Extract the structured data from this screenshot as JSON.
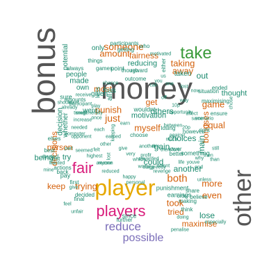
{
  "word_cloud": {
    "background": "#ffffff",
    "palette": {
      "gray": "#555555",
      "green": "#3a9a3a",
      "orange": "#d4610c",
      "teal": "#1a8a6e",
      "yellow": "#e6a800",
      "pink": "#d81b7a",
      "purple": "#7a6db8",
      "olive": "#6a9a1a"
    },
    "words": [
      {
        "text": "money",
        "color": "gray",
        "weight": 1.0
      },
      {
        "text": "bonus",
        "color": "gray",
        "weight": 0.95
      },
      {
        "text": "other",
        "color": "gray",
        "weight": 0.9
      },
      {
        "text": "player",
        "color": "yellow",
        "weight": 0.8
      },
      {
        "text": "take",
        "color": "green",
        "weight": 0.6
      },
      {
        "text": "players",
        "color": "pink",
        "weight": 0.55
      },
      {
        "text": "fair",
        "color": "pink",
        "weight": 0.55
      },
      {
        "text": "reduce",
        "color": "purple",
        "weight": 0.45
      },
      {
        "text": "possible",
        "color": "purple",
        "weight": 0.4
      },
      {
        "text": "someone",
        "color": "orange",
        "weight": 0.3
      },
      {
        "text": "amount",
        "color": "orange",
        "weight": 0.3
      },
      {
        "text": "both",
        "color": "orange",
        "weight": 0.3
      },
      {
        "text": "game",
        "color": "orange",
        "weight": 0.3
      },
      {
        "text": "more",
        "color": "orange",
        "weight": 0.3
      },
      {
        "text": "even",
        "color": "orange",
        "weight": 0.28
      },
      {
        "text": "took",
        "color": "orange",
        "weight": 0.28
      },
      {
        "text": "tried",
        "color": "orange",
        "weight": 0.25
      },
      {
        "text": "maximise",
        "color": "orange",
        "weight": 0.25
      },
      {
        "text": "taking",
        "color": "orange",
        "weight": 0.28
      },
      {
        "text": "away",
        "color": "orange",
        "weight": 0.28
      },
      {
        "text": "most",
        "color": "orange",
        "weight": 0.25
      },
      {
        "text": "just",
        "color": "orange",
        "weight": 0.28
      },
      {
        "text": "myself",
        "color": "orange",
        "weight": 0.28
      },
      {
        "text": "trying",
        "color": "orange",
        "weight": 0.28
      },
      {
        "text": "bonuses",
        "color": "orange",
        "weight": 0.25
      },
      {
        "text": "equal",
        "color": "orange",
        "weight": 0.28
      },
      {
        "text": "punish",
        "color": "orange",
        "weight": 0.25
      },
      {
        "text": "decisions",
        "color": "orange",
        "weight": 0.22
      },
      {
        "text": "fairness",
        "color": "orange",
        "weight": 0.22
      },
      {
        "text": "person",
        "color": "orange",
        "weight": 0.22
      },
      {
        "text": "keep",
        "color": "orange",
        "weight": 0.22
      },
      {
        "text": "get",
        "color": "orange",
        "weight": 0.22
      },
      {
        "text": "out",
        "color": "teal",
        "weight": 0.25
      },
      {
        "text": "reducing",
        "color": "teal",
        "weight": 0.22
      },
      {
        "text": "could",
        "color": "teal",
        "weight": 0.22
      },
      {
        "text": "lose",
        "color": "teal",
        "weight": 0.22
      },
      {
        "text": "made",
        "color": "teal",
        "weight": 0.2
      },
      {
        "text": "has",
        "color": "teal",
        "weight": 0.2
      },
      {
        "text": "thought",
        "color": "teal",
        "weight": 0.2
      },
      {
        "text": "another",
        "color": "teal",
        "weight": 0.2
      },
      {
        "text": "gain",
        "color": "teal",
        "weight": 0.2
      },
      {
        "text": "choices",
        "color": "teal",
        "weight": 0.2
      },
      {
        "text": "others",
        "color": "teal",
        "weight": 0.2
      },
      {
        "text": "main",
        "color": "teal",
        "weight": 0.2
      },
      {
        "text": "being",
        "color": "teal",
        "weight": 0.2
      },
      {
        "text": "try",
        "color": "teal",
        "weight": 0.2
      },
      {
        "text": "decision",
        "color": "teal",
        "weight": 0.2
      },
      {
        "text": "only",
        "color": "teal",
        "weight": 0.18
      },
      {
        "text": "motivation",
        "color": "teal",
        "weight": 0.18
      },
      {
        "text": "people",
        "color": "teal",
        "weight": 0.18
      },
      {
        "text": "wouldnt",
        "color": "teal",
        "weight": 0.16
      },
      {
        "text": "whether",
        "color": "teal",
        "weight": 0.16
      },
      {
        "text": "punishment",
        "color": "teal",
        "weight": 0.12
      },
      {
        "text": "taken",
        "color": "teal",
        "weight": 0.16
      },
      {
        "text": "all",
        "color": "teal",
        "weight": 0.18
      },
      {
        "text": "who",
        "color": "teal",
        "weight": 0.18
      },
      {
        "text": "own",
        "color": "teal",
        "weight": 0.16
      },
      {
        "text": "sure",
        "color": "teal",
        "weight": 0.14
      },
      {
        "text": "point",
        "color": "teal",
        "weight": 0.16
      },
      {
        "text": "were",
        "color": "teal",
        "weight": 0.16
      },
      {
        "text": "either",
        "color": "teal",
        "weight": 0.14
      },
      {
        "text": "given",
        "color": "teal",
        "weight": 0.1
      },
      {
        "text": "less",
        "color": "teal",
        "weight": 0.16
      },
      {
        "text": "since",
        "color": "teal",
        "weight": 0.14
      },
      {
        "text": "pay",
        "color": "teal",
        "weight": 0.14
      },
      {
        "text": "however",
        "color": "teal",
        "weight": 0.1
      },
      {
        "text": "share",
        "color": "teal",
        "weight": 0.12
      },
      {
        "text": "believe",
        "color": "teal",
        "weight": 0.1
      },
      {
        "text": "earnings",
        "color": "teal",
        "weight": 0.1
      },
      {
        "text": "making",
        "color": "teal",
        "weight": 0.12
      },
      {
        "text": "something",
        "color": "teal",
        "weight": 0.1
      },
      {
        "text": "think",
        "color": "teal",
        "weight": 0.12
      },
      {
        "text": "participants",
        "color": "teal",
        "weight": 0.1
      },
      {
        "text": "getting",
        "color": "teal",
        "weight": 0.1
      },
      {
        "text": "motivated",
        "color": "teal",
        "weight": 0.1
      },
      {
        "text": "potential",
        "color": "teal",
        "weight": 0.1
      },
      {
        "text": "things",
        "color": "teal",
        "weight": 0.12
      },
      {
        "text": "always",
        "color": "teal",
        "weight": 0.1
      },
      {
        "text": "games",
        "color": "teal",
        "weight": 0.1
      },
      {
        "text": "though",
        "color": "teal",
        "weight": 0.1
      },
      {
        "text": "reward",
        "color": "teal",
        "weight": 0.1
      },
      {
        "text": "outcome",
        "color": "teal",
        "weight": 0.1
      },
      {
        "text": "amounts",
        "color": "teal",
        "weight": 0.1
      },
      {
        "text": "choose",
        "color": "teal",
        "weight": 0.1
      },
      {
        "text": "situation",
        "color": "teal",
        "weight": 0.1
      },
      {
        "text": "ended",
        "color": "teal",
        "weight": 0.1
      },
      {
        "text": "maximising",
        "color": "teal",
        "weight": 0.1
      },
      {
        "text": "ensure",
        "color": "teal",
        "weight": 0.1
      },
      {
        "text": "right",
        "color": "teal",
        "weight": 0.1
      },
      {
        "text": "elses",
        "color": "teal",
        "weight": 0.12
      },
      {
        "text": "cost",
        "color": "teal",
        "weight": 0.1
      },
      {
        "text": "started",
        "color": "teal",
        "weight": 0.1
      },
      {
        "text": "wanted",
        "color": "teal",
        "weight": 0.1
      },
      {
        "text": "back",
        "color": "teal",
        "weight": 0.1
      },
      {
        "text": "first",
        "color": "teal",
        "weight": 0.1
      },
      {
        "text": "unfair",
        "color": "teal",
        "weight": 0.1
      },
      {
        "text": "feel",
        "color": "teal",
        "weight": 0.1
      },
      {
        "text": "final",
        "color": "teal",
        "weight": 0.1
      },
      {
        "text": "decided",
        "color": "teal",
        "weight": 0.1
      },
      {
        "text": "actions",
        "color": "teal",
        "weight": 0.1
      },
      {
        "text": "best",
        "color": "teal",
        "weight": 0.1
      },
      {
        "text": "mine",
        "color": "teal",
        "weight": 0.1
      },
      {
        "text": "further",
        "color": "teal",
        "weight": 0.1
      },
      {
        "text": "happy",
        "color": "teal",
        "weight": 0.1
      },
      {
        "text": "doing",
        "color": "teal",
        "weight": 0.1
      },
      {
        "text": "especially",
        "color": "teal",
        "weight": 0.1
      },
      {
        "text": "penalise",
        "color": "teal",
        "weight": 0.1
      },
      {
        "text": "revenge",
        "color": "teal",
        "weight": 0.1
      },
      {
        "text": "greedy",
        "color": "teal",
        "weight": 0.1
      },
      {
        "text": "worse",
        "color": "teal",
        "weight": 0.1
      },
      {
        "text": "order",
        "color": "teal",
        "weight": 0.1
      },
      {
        "text": "personal",
        "color": "teal",
        "weight": 0.1
      },
      {
        "text": "wasnt",
        "color": "teal",
        "weight": 0.1
      },
      {
        "text": "against",
        "color": "teal",
        "weight": 0.1
      },
      {
        "text": "better",
        "color": "teal",
        "weight": 0.1
      },
      {
        "text": "losing",
        "color": "teal",
        "weight": 0.1
      },
      {
        "text": "between",
        "color": "teal",
        "weight": 0.1
      },
      {
        "text": "therefore",
        "color": "teal",
        "weight": 0.1
      },
      {
        "text": "lower",
        "color": "teal",
        "weight": 0.1
      },
      {
        "text": "reduced",
        "color": "teal",
        "weight": 0.1
      },
      {
        "text": "anyone",
        "color": "teal",
        "weight": 0.1
      },
      {
        "text": "keeping",
        "color": "teal",
        "weight": 0.1
      },
      {
        "text": "reason",
        "color": "teal",
        "weight": 0.1
      },
      {
        "text": "highest",
        "color": "teal",
        "weight": 0.1
      },
      {
        "text": "opponent",
        "color": "teal",
        "weight": 0.1
      },
      {
        "text": "computer",
        "color": "teal",
        "weight": 0.1
      },
      {
        "text": "needed",
        "color": "teal",
        "weight": 0.1
      },
      {
        "text": "increase",
        "color": "teal",
        "weight": 0.1
      },
      {
        "text": "timegenerally",
        "color": "teal",
        "weight": 0.1
      },
      {
        "text": "already",
        "color": "teal",
        "weight": 0.1
      },
      {
        "text": "receive",
        "color": "teal",
        "weight": 0.1
      },
      {
        "text": "should",
        "color": "teal",
        "weight": 0.1
      },
      {
        "text": "want",
        "color": "teal",
        "weight": 0.1
      },
      {
        "text": "play",
        "color": "teal",
        "weight": 0.1
      },
      {
        "text": "participant",
        "color": "teal",
        "weight": 0.1
      },
      {
        "text": "small",
        "color": "teal",
        "weight": 0.1
      },
      {
        "text": "which",
        "color": "teal",
        "weight": 0.1
      },
      {
        "text": "profit",
        "color": "teal",
        "weight": 0.1
      },
      {
        "text": "rewarded",
        "color": "teal",
        "weight": 0.1
      },
      {
        "text": "youve",
        "color": "teal",
        "weight": 0.1
      },
      {
        "text": "chose",
        "color": "teal",
        "weight": 0.1
      },
      {
        "text": "this",
        "color": "teal",
        "weight": 0.1
      },
      {
        "text": "affect",
        "color": "teal",
        "weight": 0.1
      },
      {
        "text": "same",
        "color": "teal",
        "weight": 0.1
      },
      {
        "text": "scenario",
        "color": "teal",
        "weight": 0.1
      },
      {
        "text": "unless",
        "color": "teal",
        "weight": 0.1
      },
      {
        "text": "stage",
        "color": "teal",
        "weight": 0.1
      },
      {
        "text": "lost",
        "color": "teal",
        "weight": 0.1
      },
      {
        "text": "earn",
        "color": "teal",
        "weight": 0.1
      },
      {
        "text": "give",
        "color": "teal",
        "weight": 0.1
      },
      {
        "text": "once",
        "color": "teal",
        "weight": 0.1
      },
      {
        "text": "each",
        "color": "teal",
        "weight": 0.1
      },
      {
        "text": "part",
        "color": "teal",
        "weight": 0.1
      },
      {
        "text": "seemed",
        "color": "teal",
        "weight": 0.1
      },
      {
        "text": "opportunity",
        "color": "teal",
        "weight": 0.1
      },
      {
        "text": "end",
        "color": "teal",
        "weight": 0.1
      },
      {
        "text": "20p",
        "color": "teal",
        "weight": 0.1
      },
      {
        "text": "10p",
        "color": "teal",
        "weight": 0.1
      },
      {
        "text": "can",
        "color": "teal",
        "weight": 0.1
      },
      {
        "text": "you",
        "color": "teal",
        "weight": 0.1
      },
      {
        "text": "us",
        "color": "teal",
        "weight": 0.1
      },
      {
        "text": "one",
        "color": "teal",
        "weight": 0.1
      },
      {
        "text": "off",
        "color": "teal",
        "weight": 0.1
      },
      {
        "text": "way",
        "color": "teal",
        "weight": 0.1
      },
      {
        "text": "now",
        "color": "teal",
        "weight": 0.1
      },
      {
        "text": "much",
        "color": "teal",
        "weight": 0.1
      },
      {
        "text": "still",
        "color": "teal",
        "weight": 0.1
      },
      {
        "text": "why",
        "color": "teal",
        "weight": 0.1
      },
      {
        "text": "than",
        "color": "teal",
        "weight": 0.1
      },
      {
        "text": "then",
        "color": "teal",
        "weight": 0.1
      },
      {
        "text": "earned",
        "color": "teal",
        "weight": 0.1
      },
      {
        "text": "give",
        "color": "teal",
        "weight": 0.1
      },
      {
        "text": "felt",
        "color": "teal",
        "weight": 0.1
      },
      {
        "text": "other",
        "color": "teal",
        "weight": 0.1
      },
      {
        "text": "very",
        "color": "teal",
        "weight": 0.1
      },
      {
        "text": "life",
        "color": "teal",
        "weight": 0.1
      },
      {
        "text": "another",
        "color": "teal",
        "weight": 0.1
      },
      {
        "text": "chance",
        "color": "teal",
        "weight": 0.1
      },
      {
        "text": "lost",
        "color": "teal",
        "weight": 0.1
      },
      {
        "text": "rather",
        "color": "teal",
        "weight": 0.1
      },
      {
        "text": "make",
        "color": "teal",
        "weight": 0.1
      },
      {
        "text": "first",
        "color": "teal",
        "weight": 0.1
      },
      {
        "text": "thus",
        "color": "teal",
        "weight": 0.1
      },
      {
        "text": "felt",
        "color": "teal",
        "weight": 0.1
      },
      {
        "text": "end",
        "color": "teal",
        "weight": 0.1
      },
      {
        "text": "bit",
        "color": "teal",
        "weight": 0.1
      },
      {
        "text": "also",
        "color": "teal",
        "weight": 0.1
      },
      {
        "text": "help",
        "color": "teal",
        "weight": 0.1
      },
      {
        "text": "many",
        "color": "teal",
        "weight": 0.1
      }
    ]
  }
}
